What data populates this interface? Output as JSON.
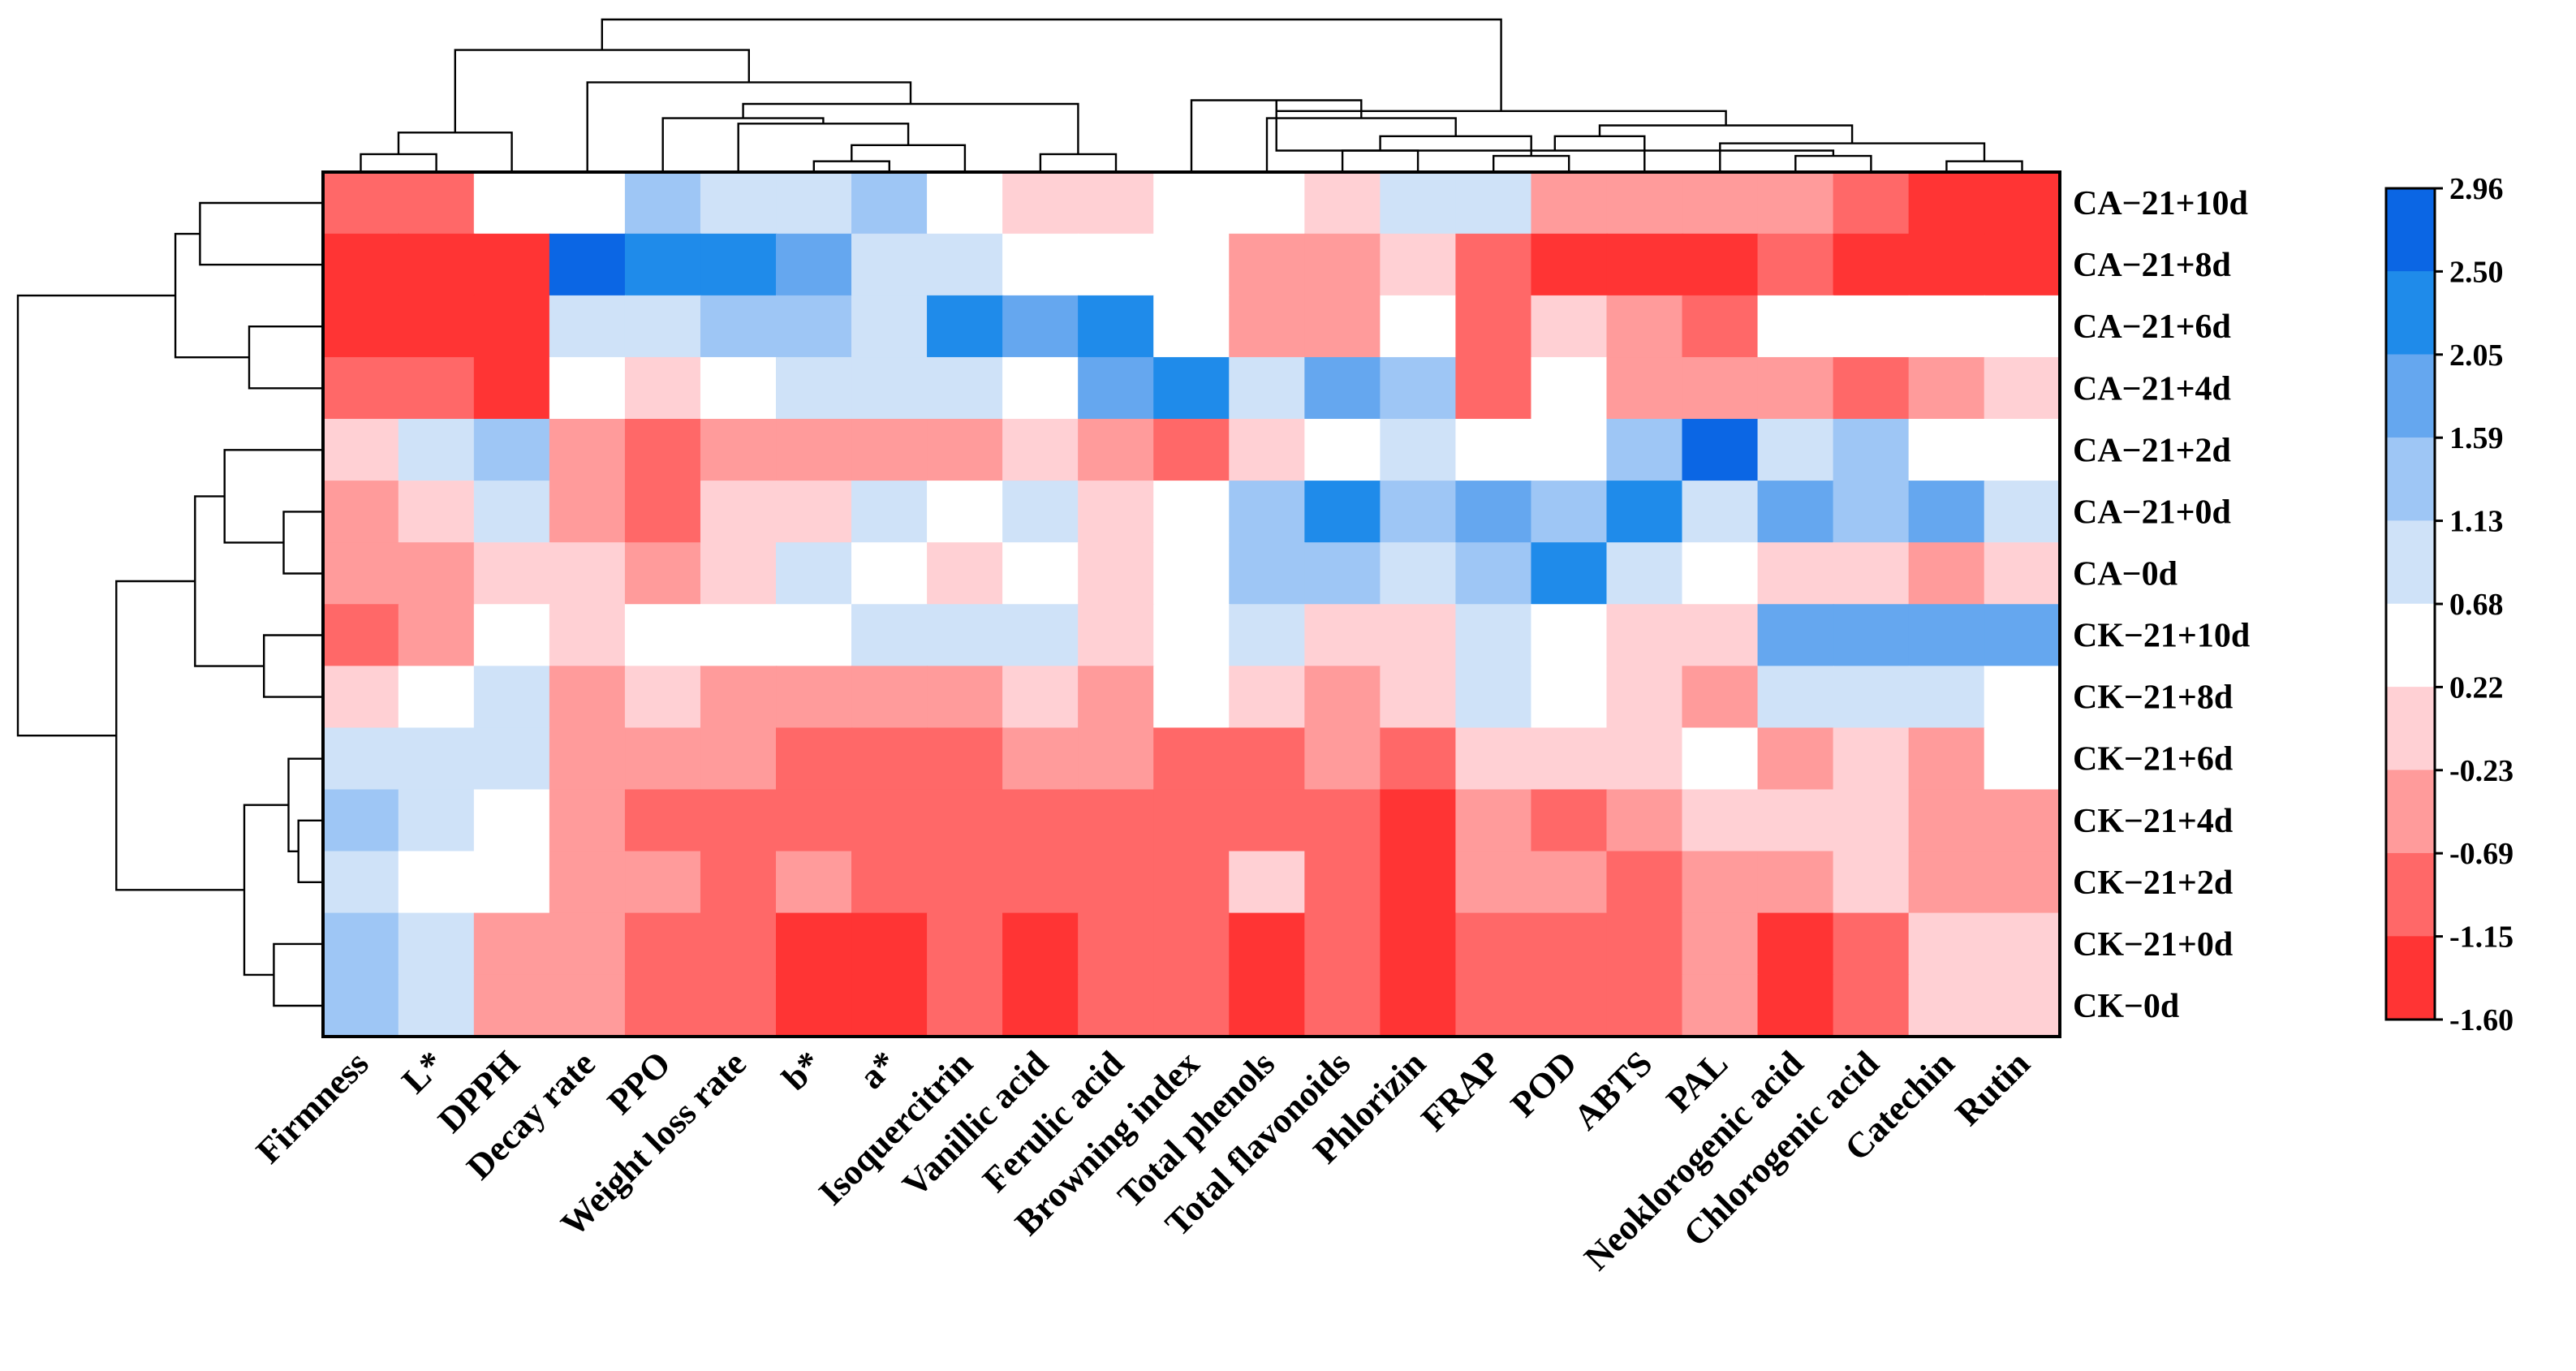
{
  "chart_data": {
    "type": "heatmap",
    "title": "",
    "columns": [
      "Firmness",
      "L*",
      "DPPH",
      "Decay rate",
      "PPO",
      "Weight loss rate",
      "b*",
      "a*",
      "Isoquercitrin",
      "Vanillic acid",
      "Ferulic acid",
      "Browning index",
      "Total phenols",
      "Total flavonoids",
      "Phlorizin",
      "FRAP",
      "POD",
      "ABTS",
      "PAL",
      "Neoklorogenic acid",
      "Chlorogenic acid",
      "Catechin",
      "Rutin"
    ],
    "rows": [
      "CA−21+10d",
      "CA−21+8d",
      "CA−21+6d",
      "CA−21+4d",
      "CA−21+2d",
      "CA−21+0d",
      "CA−0d",
      "CK−21+10d",
      "CK−21+8d",
      "CK−21+6d",
      "CK−21+4d",
      "CK−21+2d",
      "CK−21+0d",
      "CK−0d"
    ],
    "values": [
      [
        -0.9,
        -0.9,
        0.45,
        0.45,
        1.4,
        0.9,
        0.9,
        1.4,
        0.45,
        0.0,
        0.0,
        0.45,
        0.45,
        0.0,
        0.9,
        0.9,
        -0.45,
        -0.45,
        -0.45,
        -0.45,
        -0.9,
        -1.3,
        -1.6
      ],
      [
        -1.3,
        -1.6,
        -1.6,
        2.7,
        2.3,
        2.3,
        1.8,
        0.9,
        0.9,
        0.45,
        0.45,
        0.45,
        -0.45,
        -0.45,
        0.0,
        -0.9,
        -1.3,
        -1.3,
        -1.3,
        -0.9,
        -1.3,
        -1.6,
        -1.6
      ],
      [
        -1.3,
        -1.3,
        -1.3,
        0.9,
        0.9,
        1.4,
        1.4,
        0.9,
        2.3,
        1.8,
        2.3,
        0.45,
        -0.45,
        -0.45,
        0.45,
        -0.9,
        0.0,
        -0.45,
        -0.9,
        0.45,
        0.45,
        0.45,
        0.45
      ],
      [
        -0.9,
        -0.9,
        -1.3,
        0.45,
        0.0,
        0.45,
        0.9,
        0.9,
        0.9,
        0.45,
        1.8,
        2.3,
        0.9,
        1.8,
        1.4,
        -0.9,
        0.45,
        -0.45,
        -0.45,
        -0.45,
        -0.9,
        -0.45,
        0.0
      ],
      [
        0.0,
        0.9,
        1.4,
        -0.45,
        -0.9,
        -0.45,
        -0.45,
        -0.45,
        -0.45,
        0.0,
        -0.45,
        -0.9,
        0.0,
        0.45,
        0.9,
        0.45,
        0.45,
        1.4,
        2.7,
        0.9,
        1.4,
        0.45,
        0.45
      ],
      [
        -0.45,
        0.0,
        0.9,
        -0.45,
        -0.9,
        0.0,
        0.0,
        0.9,
        0.45,
        0.9,
        0.0,
        0.45,
        1.4,
        2.3,
        1.4,
        1.8,
        1.4,
        2.3,
        0.9,
        1.8,
        1.4,
        1.8,
        0.9
      ],
      [
        -0.45,
        -0.45,
        0.0,
        0.0,
        -0.45,
        0.0,
        0.9,
        0.45,
        0.0,
        0.45,
        0.0,
        0.45,
        1.4,
        1.4,
        0.9,
        1.4,
        2.3,
        0.9,
        0.45,
        0.0,
        0.0,
        -0.45,
        0.0
      ],
      [
        -0.9,
        -0.45,
        0.45,
        0.0,
        0.45,
        0.45,
        0.45,
        0.9,
        0.9,
        0.9,
        0.0,
        0.45,
        0.9,
        0.0,
        0.0,
        0.9,
        0.45,
        0.0,
        0.0,
        1.8,
        1.8,
        1.8,
        1.8
      ],
      [
        0.0,
        0.45,
        0.9,
        -0.45,
        0.0,
        -0.45,
        -0.45,
        -0.45,
        -0.45,
        0.0,
        -0.45,
        0.45,
        0.0,
        -0.45,
        0.0,
        0.9,
        0.45,
        0.0,
        -0.45,
        0.9,
        0.9,
        0.9,
        0.45
      ],
      [
        0.9,
        0.9,
        0.9,
        -0.45,
        -0.45,
        -0.45,
        -0.9,
        -0.9,
        -0.9,
        -0.45,
        -0.45,
        -0.9,
        -0.9,
        -0.45,
        -0.9,
        0.0,
        0.0,
        0.0,
        0.45,
        -0.45,
        0.0,
        -0.45,
        0.45
      ],
      [
        1.4,
        0.9,
        0.45,
        -0.45,
        -0.9,
        -0.9,
        -0.9,
        -0.9,
        -0.9,
        -0.9,
        -0.9,
        -0.9,
        -0.9,
        -0.9,
        -1.3,
        -0.45,
        -0.9,
        -0.45,
        0.0,
        0.0,
        0.0,
        -0.45,
        -0.45
      ],
      [
        0.9,
        0.45,
        0.45,
        -0.45,
        -0.45,
        -0.9,
        -0.45,
        -0.9,
        -0.9,
        -0.9,
        -0.9,
        -0.9,
        0.0,
        -0.9,
        -1.3,
        -0.45,
        -0.45,
        -0.9,
        -0.45,
        -0.45,
        0.0,
        -0.45,
        -0.45
      ],
      [
        1.4,
        0.9,
        -0.45,
        -0.45,
        -0.9,
        -0.9,
        -1.3,
        -1.3,
        -0.9,
        -1.3,
        -0.9,
        -0.9,
        -1.3,
        -0.9,
        -1.3,
        -0.9,
        -0.9,
        -0.9,
        -0.45,
        -1.3,
        -0.9,
        0.0,
        0.0
      ],
      [
        1.4,
        0.9,
        -0.45,
        -0.45,
        -0.9,
        -0.9,
        -1.3,
        -1.3,
        -0.9,
        -1.3,
        -0.9,
        -0.9,
        -1.3,
        -0.9,
        -1.3,
        -0.9,
        -0.9,
        -0.9,
        -0.45,
        -1.3,
        -0.9,
        0.0,
        0.0
      ]
    ],
    "colorbar": {
      "ticks": [
        "2.96",
        "2.50",
        "2.05",
        "1.59",
        "1.13",
        "0.68",
        "0.22",
        "-0.23",
        "-0.69",
        "-1.15",
        "-1.60"
      ],
      "breaks": [
        2.96,
        2.5,
        2.05,
        1.59,
        1.13,
        0.68,
        0.22,
        -0.23,
        -0.69,
        -1.15,
        -1.6
      ],
      "colors": [
        "#0b66e4",
        "#1f8bea",
        "#65a7ef",
        "#9ec6f5",
        "#cfe2f8",
        "#ffffff",
        "#ffd0d4",
        "#ff9b9b",
        "#ff6868",
        "#ff3434"
      ]
    },
    "col_dendrogram": {
      "leaf_order": [
        0,
        1,
        2,
        3,
        4,
        5,
        6,
        7,
        8,
        9,
        10,
        11,
        12,
        13,
        14,
        15,
        16,
        17,
        18,
        19,
        20,
        21,
        22
      ],
      "merges": [
        [
          0,
          1,
          0.1
        ],
        [
          23,
          2,
          0.22
        ],
        [
          6,
          7,
          0.06
        ],
        [
          25,
          8,
          0.15
        ],
        [
          5,
          26,
          0.27
        ],
        [
          4,
          27,
          0.3
        ],
        [
          9,
          10,
          0.1
        ],
        [
          28,
          29,
          0.38
        ],
        [
          3,
          30,
          0.5
        ],
        [
          24,
          31,
          0.68
        ],
        [
          13,
          14,
          0.12
        ],
        [
          15,
          16,
          0.09
        ],
        [
          33,
          34,
          0.2
        ],
        [
          12,
          35,
          0.3
        ],
        [
          11,
          36,
          0.4
        ],
        [
          19,
          20,
          0.09
        ],
        [
          21,
          22,
          0.06
        ],
        [
          37,
          38,
          0.12
        ],
        [
          18,
          39,
          0.16
        ],
        [
          17,
          40,
          0.2
        ],
        [
          41,
          42,
          0.26
        ],
        [
          37,
          43,
          0.34
        ],
        [
          32,
          44,
          0.85
        ]
      ]
    },
    "row_dendrogram": {
      "leaf_order": [
        0,
        1,
        2,
        3,
        4,
        5,
        6,
        7,
        8,
        9,
        10,
        11,
        12,
        13
      ],
      "merges": [
        [
          0,
          1,
          0.25
        ],
        [
          2,
          3,
          0.15
        ],
        [
          14,
          15,
          0.3
        ],
        [
          5,
          6,
          0.08
        ],
        [
          4,
          17,
          0.2
        ],
        [
          7,
          8,
          0.12
        ],
        [
          18,
          19,
          0.26
        ],
        [
          10,
          11,
          0.05
        ],
        [
          9,
          21,
          0.07
        ],
        [
          12,
          13,
          0.1
        ],
        [
          22,
          23,
          0.16
        ],
        [
          20,
          24,
          0.42
        ],
        [
          16,
          25,
          0.62
        ]
      ]
    }
  }
}
